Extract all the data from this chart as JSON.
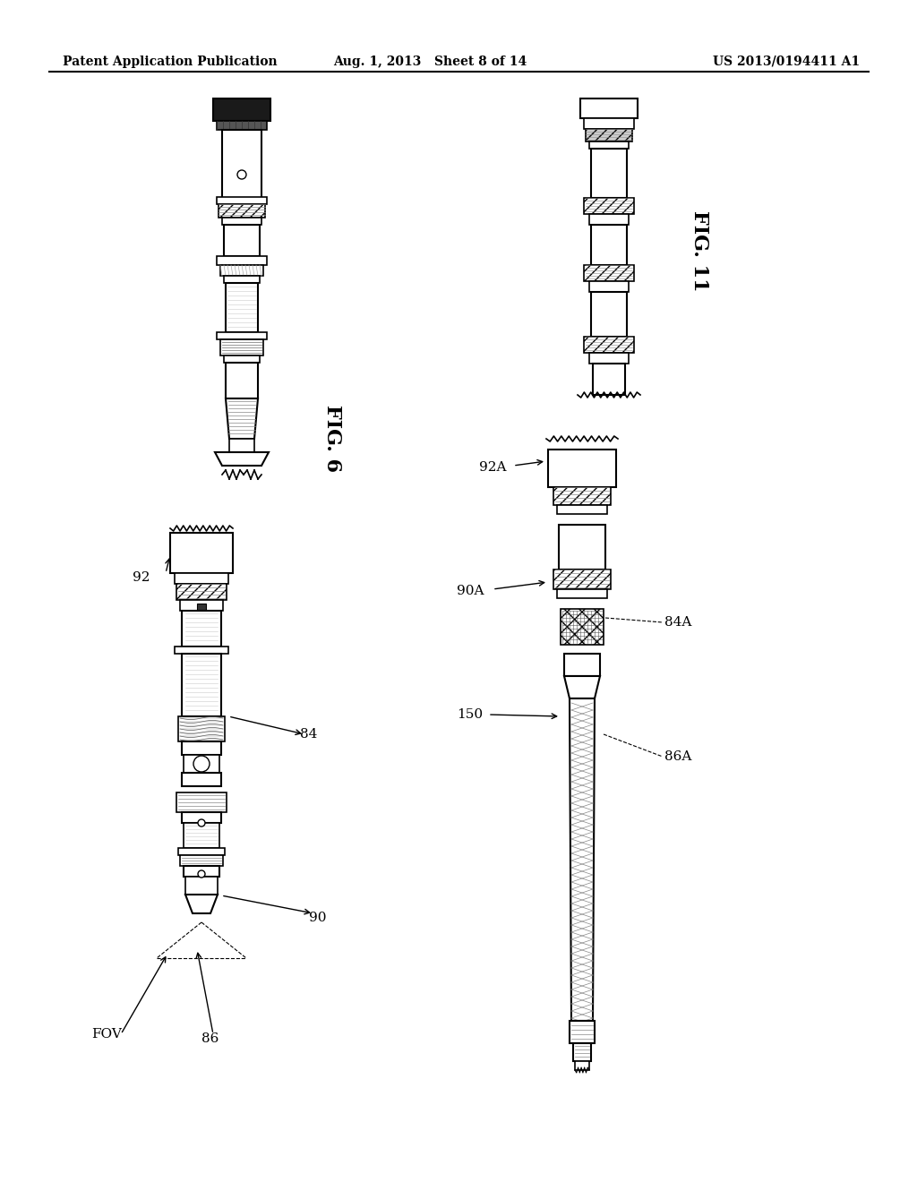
{
  "bg_color": "#ffffff",
  "header_left": "Patent Application Publication",
  "header_center": "Aug. 1, 2013   Sheet 8 of 14",
  "header_right": "US 2013/0194411 A1",
  "fig6_label": "FIG. 6",
  "fig11_label": "FIG. 11"
}
